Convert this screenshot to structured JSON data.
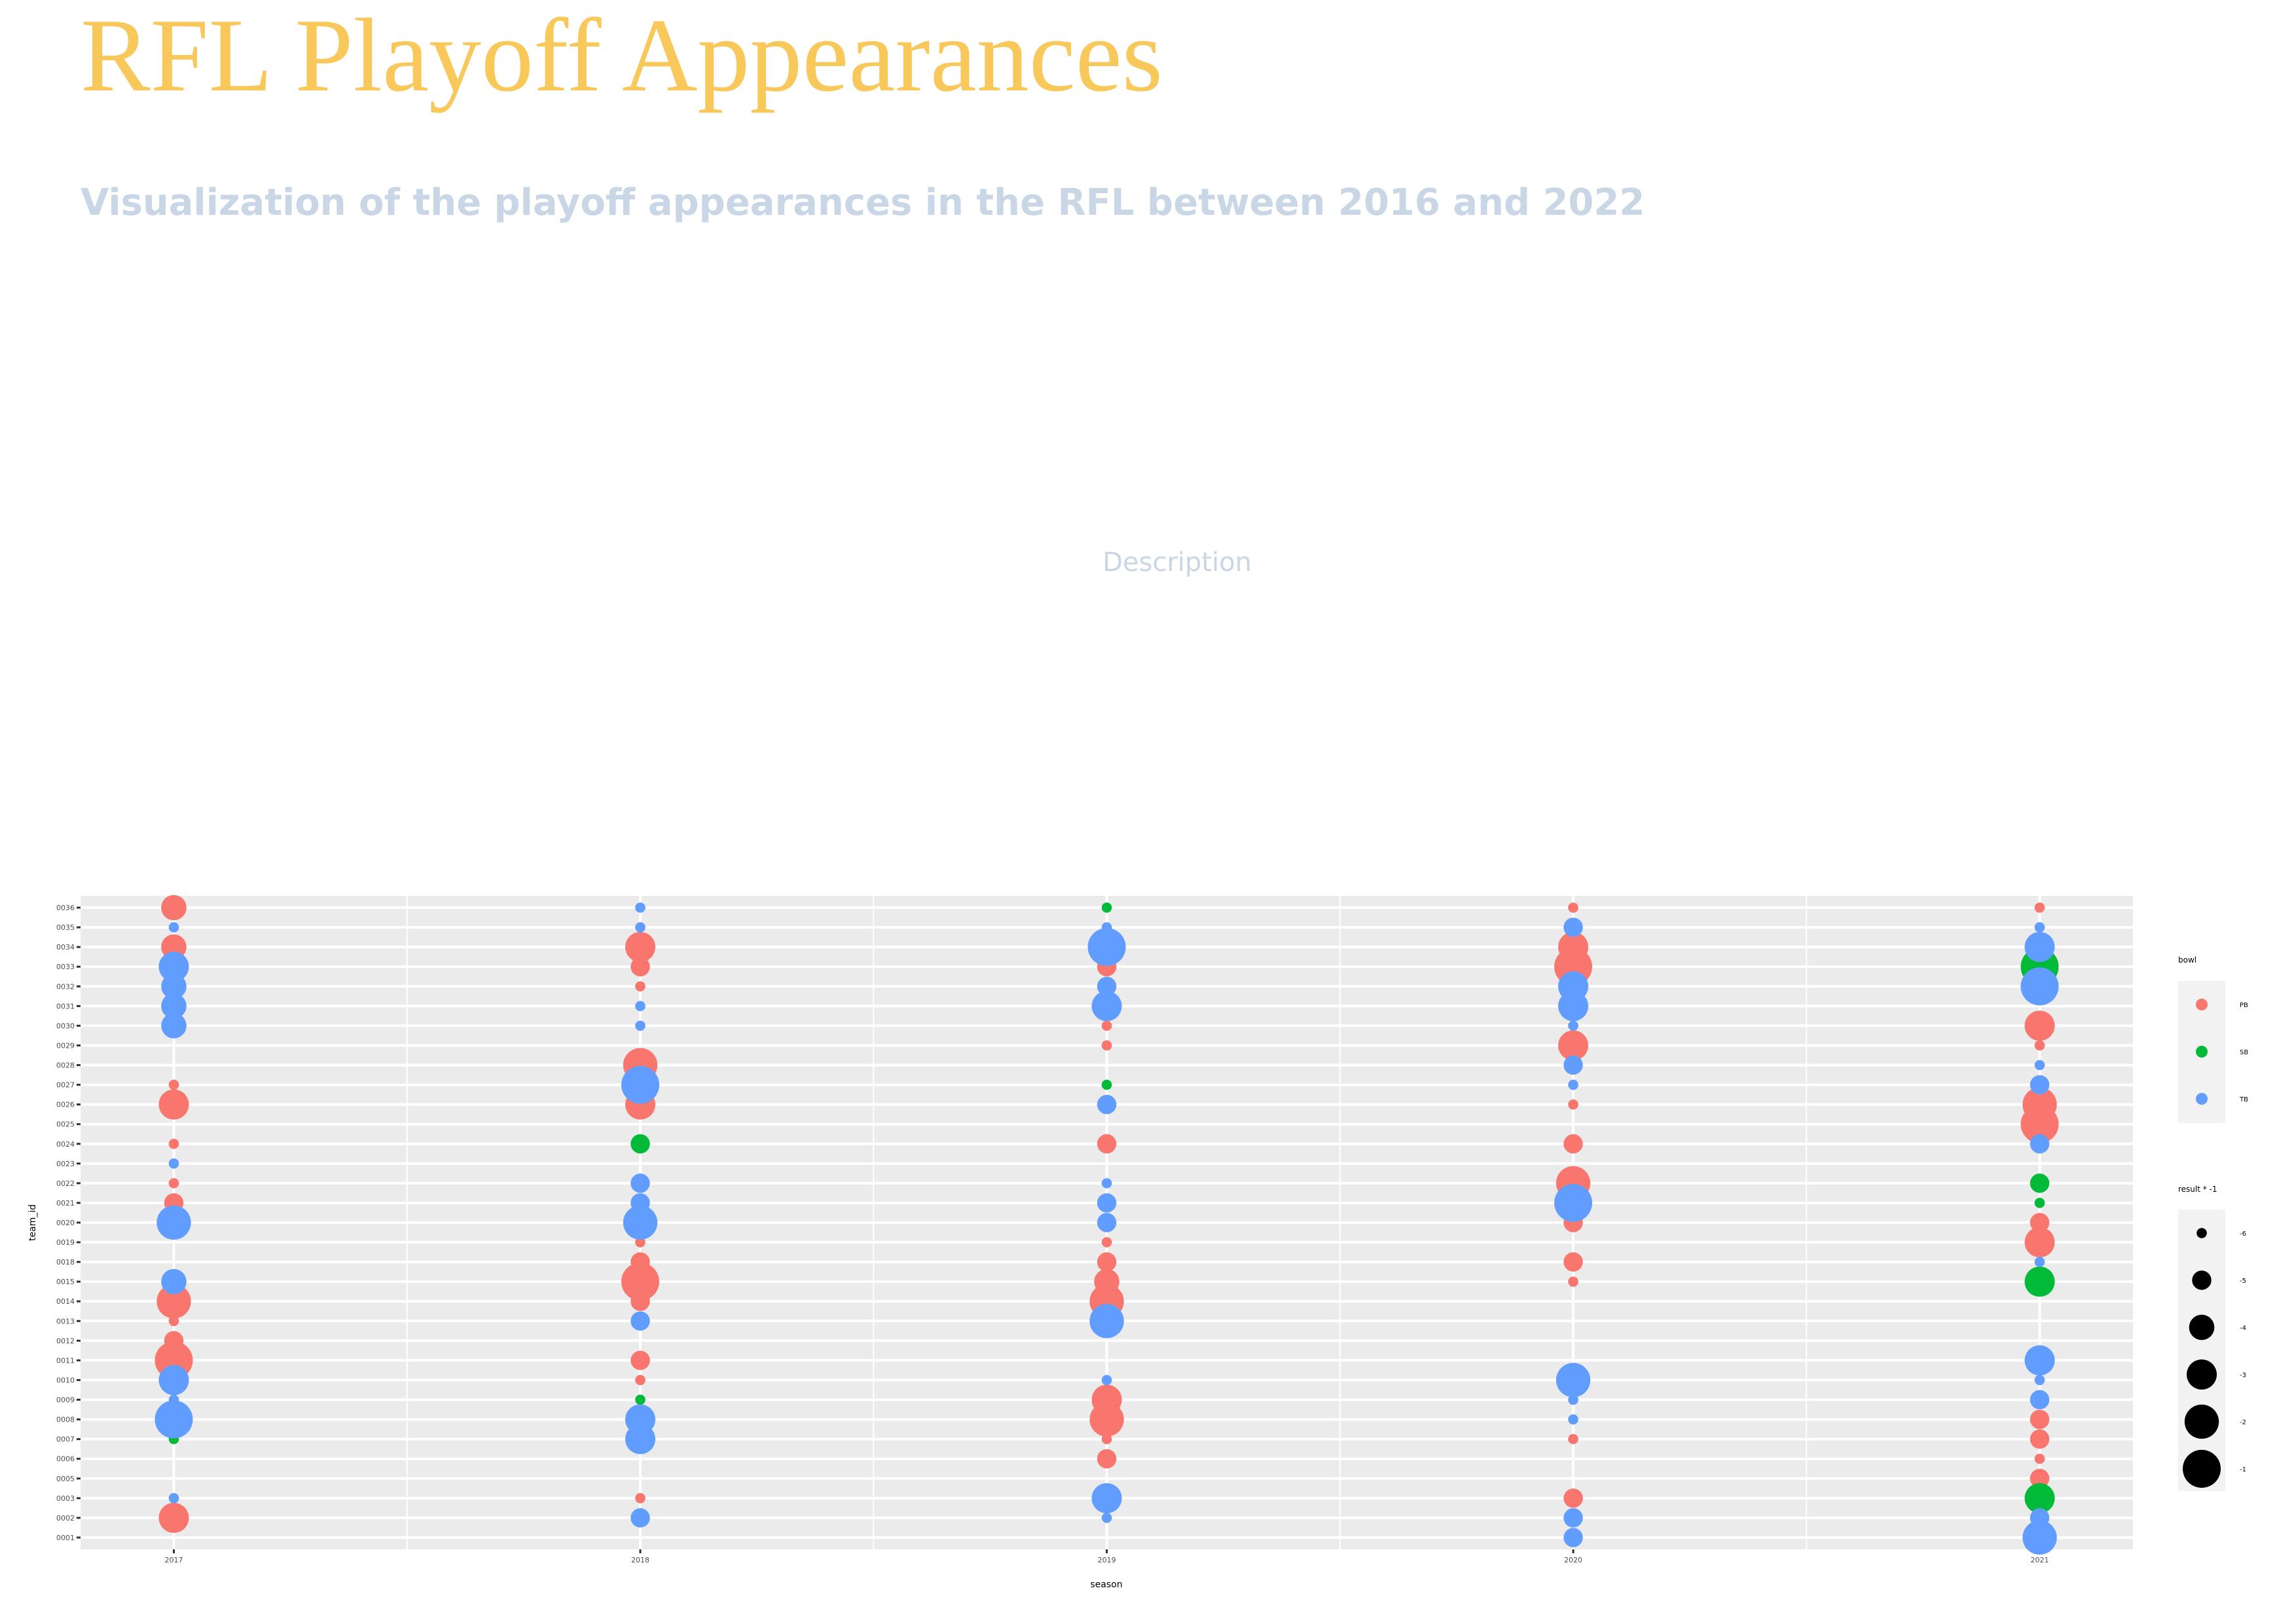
{
  "title": "RFL Playoff Appearances",
  "subtitle": "Visualization of the playoff appearances in the RFL between 2016 and 2022",
  "description": "Description",
  "chart_data": {
    "type": "scatter",
    "x_label": "season",
    "y_label": "team_id",
    "xlim": [
      2016.8,
      2021.2
    ],
    "xticks": [
      2017,
      2018,
      2019,
      2020,
      2021
    ],
    "y_categories": [
      "0036",
      "0035",
      "0034",
      "0033",
      "0032",
      "0031",
      "0030",
      "0029",
      "0028",
      "0027",
      "0026",
      "0025",
      "0024",
      "0023",
      "0022",
      "0021",
      "0020",
      "0019",
      "0018",
      "0015",
      "0014",
      "0013",
      "0012",
      "0011",
      "0010",
      "0009",
      "0008",
      "0007",
      "0006",
      "0005",
      "0003",
      "0002",
      "0001"
    ],
    "grid": true,
    "color_legend_title": "bowl",
    "size_legend_title": "result * -1",
    "size_lim": [
      -6,
      -1
    ],
    "size_ticks": [
      -6,
      -5,
      -4,
      -3,
      -2,
      -1
    ],
    "series": [
      {
        "name": "PB",
        "color": "#f8766d",
        "x": [
          2017,
          2017,
          2017,
          2017,
          2017,
          2017,
          2017,
          2017,
          2017,
          2017,
          2017,
          2017,
          2018,
          2018,
          2018,
          2018,
          2018,
          2018,
          2018,
          2018,
          2018,
          2018,
          2018,
          2018,
          2019,
          2019,
          2019,
          2019,
          2019,
          2019,
          2019,
          2019,
          2019,
          2019,
          2019,
          2019,
          2020,
          2020,
          2020,
          2020,
          2020,
          2020,
          2020,
          2020,
          2020,
          2020,
          2020,
          2020,
          2021,
          2021,
          2021,
          2021,
          2021,
          2021,
          2021,
          2021,
          2021,
          2021,
          2021
        ],
        "y": [
          "0036",
          "0034",
          "0027",
          "0026",
          "0024",
          "0022",
          "0021",
          "0014",
          "0013",
          "0012",
          "0011",
          "0002",
          "0034",
          "0033",
          "0032",
          "0028",
          "0026",
          "0019",
          "0018",
          "0015",
          "0014",
          "0011",
          "0010",
          "0003",
          "0033",
          "0030",
          "0029",
          "0024",
          "0019",
          "0018",
          "0015",
          "0014",
          "0009",
          "0008",
          "0007",
          "0006",
          "0036",
          "0034",
          "0033",
          "0029",
          "0026",
          "0024",
          "0022",
          "0020",
          "0018",
          "0015",
          "0007",
          "0003",
          "0036",
          "0030",
          "0029",
          "0026",
          "0025",
          "0020",
          "0019",
          "0008",
          "0007",
          "0006",
          "0005"
        ],
        "size": [
          -4,
          -4,
          -6,
          -3,
          -6,
          -6,
          -5,
          -2,
          -6,
          -5,
          -1,
          -3,
          -3,
          -5,
          -6,
          -2,
          -3,
          -6,
          -5,
          -1,
          -5,
          -5,
          -6,
          -6,
          -5,
          -6,
          -6,
          -5,
          -6,
          -5,
          -4,
          -2,
          -3,
          -2,
          -6,
          -5,
          -6,
          -3,
          -1,
          -3,
          -6,
          -5,
          -2,
          -5,
          -5,
          -6,
          -6,
          -5,
          -6,
          -3,
          -6,
          -2,
          -1,
          -5,
          -3,
          -5,
          -5,
          -6,
          -5
        ]
      },
      {
        "name": "SB",
        "color": "#00ba38",
        "x": [
          2017,
          2018,
          2018,
          2019,
          2019,
          2021,
          2021,
          2021,
          2021,
          2021
        ],
        "y": [
          "0007",
          "0024",
          "0009",
          "0036",
          "0027",
          "0033",
          "0022",
          "0021",
          "0015",
          "0003"
        ],
        "size": [
          -6,
          -5,
          -6,
          -6,
          -6,
          -1,
          -5,
          -6,
          -3,
          -3
        ]
      },
      {
        "name": "TB",
        "color": "#619cff",
        "x": [
          2017,
          2017,
          2017,
          2017,
          2017,
          2017,
          2017,
          2017,
          2017,
          2017,
          2017,
          2017,
          2018,
          2018,
          2018,
          2018,
          2018,
          2018,
          2018,
          2018,
          2018,
          2018,
          2018,
          2018,
          2019,
          2019,
          2019,
          2019,
          2019,
          2019,
          2019,
          2019,
          2019,
          2019,
          2019,
          2019,
          2020,
          2020,
          2020,
          2020,
          2020,
          2020,
          2020,
          2020,
          2020,
          2020,
          2020,
          2020,
          2021,
          2021,
          2021,
          2021,
          2021,
          2021,
          2021,
          2021,
          2021,
          2021,
          2021,
          2021
        ],
        "y": [
          "0035",
          "0033",
          "0032",
          "0031",
          "0030",
          "0023",
          "0020",
          "0015",
          "0010",
          "0009",
          "0008",
          "0003",
          "0036",
          "0035",
          "0031",
          "0030",
          "0027",
          "0022",
          "0021",
          "0020",
          "0013",
          "0008",
          "0007",
          "0002",
          "0035",
          "0034",
          "0032",
          "0031",
          "0026",
          "0022",
          "0021",
          "0020",
          "0013",
          "0010",
          "0003",
          "0002",
          "0035",
          "0032",
          "0031",
          "0030",
          "0028",
          "0027",
          "0021",
          "0010",
          "0009",
          "0008",
          "0002",
          "0001",
          "0035",
          "0034",
          "0032",
          "0028",
          "0027",
          "0024",
          "0018",
          "0011",
          "0010",
          "0009",
          "0002",
          "0001"
        ],
        "size": [
          -6,
          -3,
          -4,
          -4,
          -4,
          -6,
          -2,
          -4,
          -3,
          -6,
          -1,
          -6,
          -6,
          -6,
          -6,
          -6,
          -1,
          -5,
          -5,
          -2,
          -5,
          -3,
          -3,
          -5,
          -6,
          -1,
          -5,
          -3,
          -5,
          -6,
          -5,
          -5,
          -2,
          -6,
          -3,
          -6,
          -5,
          -3,
          -3,
          -6,
          -5,
          -6,
          -1,
          -2,
          -6,
          -6,
          -5,
          -5,
          -6,
          -3,
          -1,
          -6,
          -5,
          -5,
          -6,
          -3,
          -6,
          -5,
          -5,
          -2
        ]
      }
    ]
  }
}
